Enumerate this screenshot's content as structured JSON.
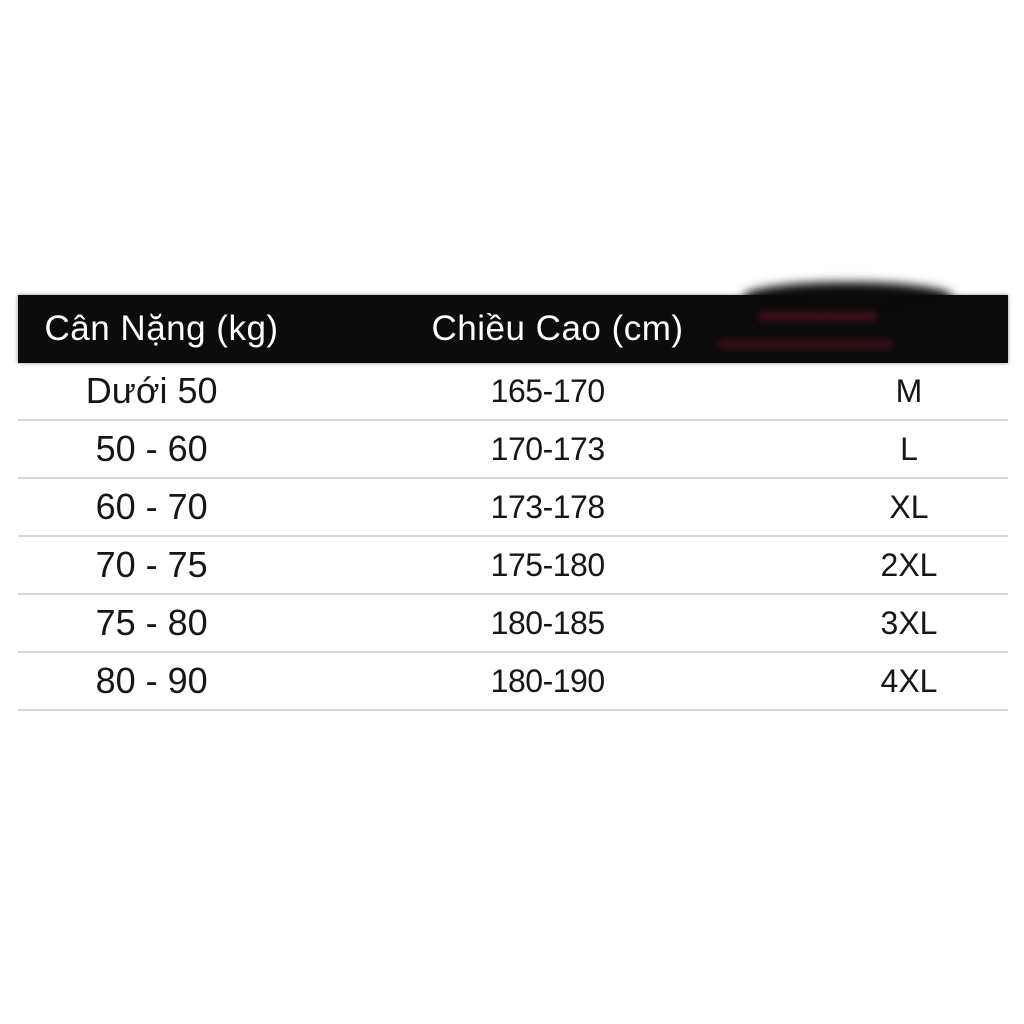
{
  "page": {
    "background": "#ffffff",
    "description_colors": {
      "header_bg": "#0c0c0c",
      "header_text": "#ffffff",
      "row_text": "#161616",
      "divider": "#d5d5d5"
    }
  },
  "chart_data": {
    "type": "table",
    "title": "",
    "columns": [
      "Cân Nặng (kg)",
      "Chiều Cao (cm)",
      ""
    ],
    "rows": [
      [
        "Dưới 50",
        "165-170",
        "M"
      ],
      [
        "50 - 60",
        "170-173",
        "L"
      ],
      [
        "60 - 70",
        "173-178",
        "XL"
      ],
      [
        "70 - 75",
        "175-180",
        "2XL"
      ],
      [
        "75 - 80",
        "180-185",
        "3XL"
      ],
      [
        "80 - 90",
        "180-190",
        "4XL"
      ]
    ]
  },
  "table": {
    "header": {
      "weight_label": "Cân Nặng (kg)",
      "height_label": "Chiều Cao (cm)"
    },
    "rows": [
      {
        "weight": "Dưới 50",
        "height": "165-170",
        "size": "M"
      },
      {
        "weight": "50 - 60",
        "height": "170-173",
        "size": "L"
      },
      {
        "weight": "60 - 70",
        "height": "173-178",
        "size": "XL"
      },
      {
        "weight": "70 - 75",
        "height": "175-180",
        "size": "2XL"
      },
      {
        "weight": "75 - 80",
        "height": "180-185",
        "size": "3XL"
      },
      {
        "weight": "80 - 90",
        "height": "180-190",
        "size": "4XL"
      }
    ]
  }
}
